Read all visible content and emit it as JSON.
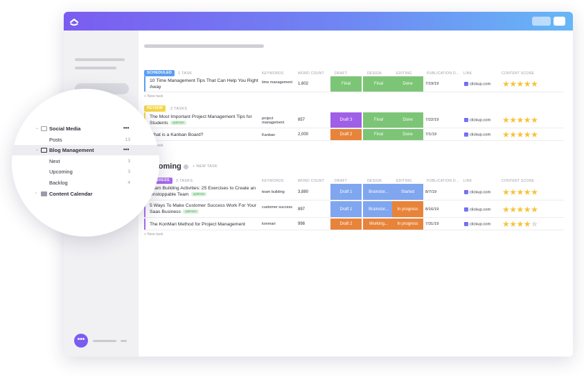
{
  "app": {
    "logo_icon": "clickup-logo-icon"
  },
  "sidebar": {
    "chat_icon": "•••",
    "tree": [
      {
        "label": "Social Media",
        "type": "folder",
        "expanded": true,
        "menu": "•••"
      },
      {
        "label": "Posts",
        "count": "13"
      },
      {
        "label": "Blog Management",
        "type": "folder",
        "expanded": true,
        "active": true,
        "menu": "•••"
      },
      {
        "label": "Next",
        "count": "3"
      },
      {
        "label": "Upcoming",
        "count": "3"
      },
      {
        "label": "Backlog",
        "count": "4"
      },
      {
        "label": "Content Calendar",
        "type": "folder",
        "expanded": false
      }
    ]
  },
  "columns": [
    "KEYWORDS",
    "WORD COUNT",
    "DRAFT",
    "DESIGN",
    "EDITING",
    "PUBLICATION D...",
    "LINK",
    "CONTENT SCORE"
  ],
  "groups": [
    {
      "status": "SCHEDULED",
      "status_color": "#5b9ef0",
      "count": "1 TASK",
      "new_task": "+ New task",
      "tasks": [
        {
          "name": "10 Time Management Tips That Can Help You Right Away",
          "tag": "",
          "keywords": "time management",
          "word_count": "1,602",
          "draft": "Final",
          "design": "Final",
          "editing": "Done",
          "date": "7/19/19",
          "link": "clickup.com",
          "score": 5
        }
      ]
    },
    {
      "status": "REVIEW",
      "status_color": "#f5d547",
      "count": "2 TASKS",
      "new_task": "+ New task",
      "tasks": [
        {
          "name": "The Most Important Project Management Tips for Students",
          "tag": "optimize",
          "keywords": "project management",
          "word_count": "857",
          "draft": "Draft 3",
          "design": "Final",
          "editing": "Done",
          "date": "7/22/19",
          "link": "clickup.com",
          "score": 5
        },
        {
          "name": "What is a Kanban Board?",
          "tag": "",
          "keywords": "Kanban",
          "word_count": "2,000",
          "draft": "Draft 2",
          "design": "Final",
          "editing": "Done",
          "date": "7/1/19",
          "link": "clickup.com",
          "score": 5
        }
      ]
    },
    {
      "group_title": "Upcoming",
      "group_new": "+ NEW TASK",
      "status": "PROGRESS",
      "status_color": "#a86cf0",
      "count": "3 TASKS",
      "new_task": "+ New task",
      "tasks": [
        {
          "name": "Team Building Activities: 25 Exercises to Create an Unstoppable Team",
          "tag": "optimize",
          "keywords": "team building",
          "word_count": "3,880",
          "draft": "Draft 1",
          "design": "Brainstor...",
          "editing": "Started",
          "date": "8/7/19",
          "link": "clickup.com",
          "score": 5
        },
        {
          "name": "5 Ways To Make Customer Success Work For Your Saas Business",
          "tag": "optimize",
          "keywords": "customer success",
          "word_count": "897",
          "draft": "Draft 1",
          "design": "Brainstor...",
          "editing": "In progress",
          "date": "8/16/19",
          "link": "clickup.com",
          "score": 5
        },
        {
          "name": "The KonMari Method for Project Management",
          "tag": "",
          "keywords": "konmari",
          "word_count": "998",
          "draft": "Draft 2",
          "design": "Working...",
          "editing": "In progress",
          "date": "7/31/19",
          "link": "clickup.com",
          "score": 4
        }
      ]
    }
  ],
  "colors": {
    "green": "#7cc576",
    "purple": "#9f5fe6",
    "orange": "#e8833a",
    "blue": "#7fa6ef",
    "star": "#f5c33b"
  }
}
